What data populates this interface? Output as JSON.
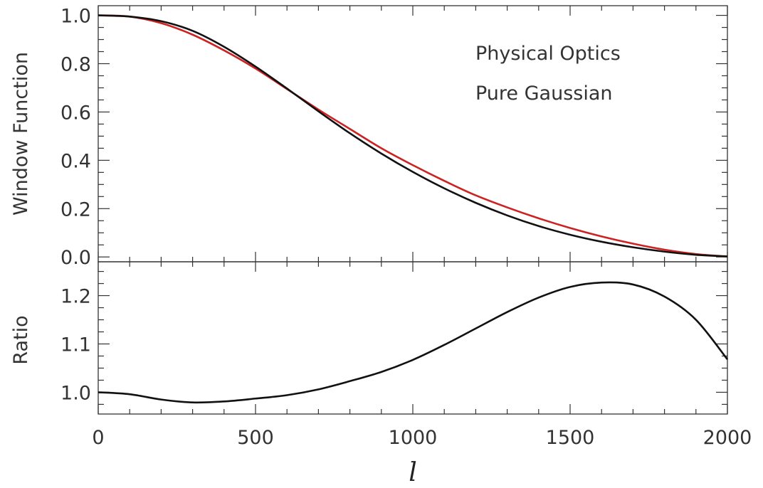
{
  "chart_data": [
    {
      "type": "line",
      "ylabel": "Window Function",
      "xlim": [
        0,
        2000
      ],
      "ylim": [
        -0.02,
        1.04
      ],
      "xticks": [
        0,
        500,
        1000,
        1500,
        2000
      ],
      "yticks": [
        0.0,
        0.2,
        0.4,
        0.6,
        0.8,
        1.0
      ],
      "ytick_labels": [
        "0.0",
        "0.2",
        "0.4",
        "0.6",
        "0.8",
        "1.0"
      ],
      "legend": {
        "position": "top-right",
        "entries": [
          "Physical Optics",
          "Pure Gaussian"
        ]
      },
      "series": [
        {
          "name": "Physical Optics",
          "color": "#cc2222",
          "x": [
            0,
            100,
            200,
            300,
            400,
            500,
            600,
            700,
            800,
            900,
            1000,
            1100,
            1200,
            1300,
            1400,
            1500,
            1600,
            1700,
            1800,
            1900,
            2000
          ],
          "y": [
            1.0,
            0.995,
            0.968,
            0.92,
            0.855,
            0.78,
            0.695,
            0.61,
            0.53,
            0.45,
            0.38,
            0.315,
            0.255,
            0.205,
            0.16,
            0.12,
            0.085,
            0.055,
            0.03,
            0.012,
            0.002
          ]
        },
        {
          "name": "Pure Gaussian",
          "color": "#111111",
          "x": [
            0,
            100,
            200,
            300,
            400,
            500,
            600,
            700,
            800,
            900,
            1000,
            1100,
            1200,
            1300,
            1400,
            1500,
            1600,
            1700,
            1800,
            1900,
            2000
          ],
          "y": [
            1.0,
            0.995,
            0.976,
            0.936,
            0.87,
            0.788,
            0.697,
            0.603,
            0.512,
            0.428,
            0.352,
            0.284,
            0.224,
            0.172,
            0.128,
            0.092,
            0.063,
            0.04,
            0.022,
            0.009,
            0.002
          ]
        }
      ]
    },
    {
      "type": "line",
      "xlabel": "l",
      "ylabel": "Ratio",
      "xlim": [
        0,
        2000
      ],
      "ylim": [
        0.955,
        1.27
      ],
      "xticks": [
        0,
        500,
        1000,
        1500,
        2000
      ],
      "xtick_labels": [
        "0",
        "500",
        "1000",
        "1500",
        "2000"
      ],
      "yticks": [
        1.0,
        1.1,
        1.2
      ],
      "ytick_labels": [
        "1.0",
        "1.1",
        "1.2"
      ],
      "series": [
        {
          "color": "#111111",
          "x": [
            0,
            100,
            200,
            300,
            400,
            500,
            600,
            700,
            800,
            900,
            1000,
            1100,
            1200,
            1300,
            1400,
            1500,
            1600,
            1700,
            1800,
            1900,
            2000
          ],
          "y": [
            1.0,
            0.996,
            0.985,
            0.979,
            0.981,
            0.987,
            0.994,
            1.006,
            1.023,
            1.042,
            1.067,
            1.098,
            1.132,
            1.166,
            1.196,
            1.218,
            1.227,
            1.223,
            1.198,
            1.15,
            1.068
          ]
        }
      ]
    }
  ]
}
